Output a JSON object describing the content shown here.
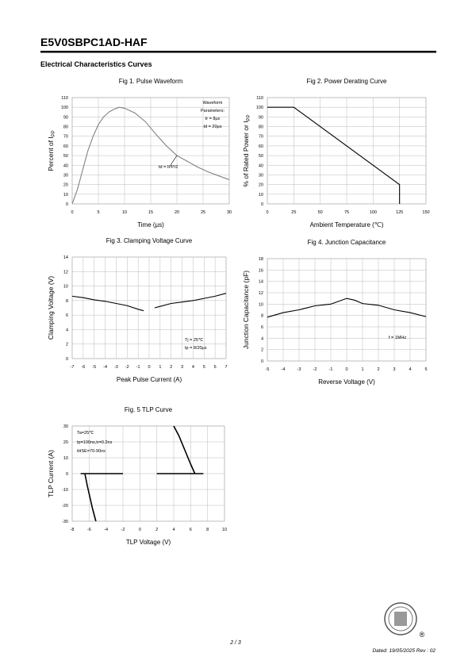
{
  "header": {
    "title": "E5V0SBPC1AD-HAF",
    "section": "Electrical Characteristics Curves"
  },
  "chart_data": [
    {
      "type": "line",
      "title": "Fig 1. Pulse Waveform",
      "xlabel": "Time (μs)",
      "ylabel": "Percent of I",
      "ylabel_sub": "PP",
      "xlim": [
        0,
        30
      ],
      "xticks": [
        0,
        5,
        10,
        15,
        20,
        25,
        30
      ],
      "ylim": [
        0,
        110
      ],
      "yticks": [
        0,
        10,
        20,
        30,
        40,
        50,
        60,
        70,
        80,
        90,
        100,
        110
      ],
      "grid": true,
      "series": [
        {
          "color": "#808080",
          "x": [
            0,
            1,
            2,
            3,
            4,
            5,
            6,
            7,
            8,
            9,
            10,
            12,
            14,
            16,
            18,
            20,
            22,
            24,
            26,
            28,
            30
          ],
          "values": [
            0,
            15,
            35,
            55,
            70,
            82,
            90,
            95,
            98,
            100,
            99,
            94,
            85,
            72,
            60,
            50,
            44,
            38,
            33,
            29,
            25
          ]
        }
      ],
      "annotations": [
        "Waveform",
        "Parameters:",
        "tr = 8μs",
        "td = 20μs",
        "td = IPP/2"
      ]
    },
    {
      "type": "line",
      "title": "Fig 2. Power Derating Curve",
      "xlabel": "Ambient Temperature (℃)",
      "ylabel": "% of Rated Power or I",
      "ylabel_sub": "PP",
      "xlim": [
        0,
        150
      ],
      "xticks": [
        0,
        25,
        50,
        75,
        100,
        125,
        150
      ],
      "ylim": [
        0,
        110
      ],
      "yticks": [
        0,
        10,
        20,
        30,
        40,
        50,
        60,
        70,
        80,
        90,
        100,
        110
      ],
      "grid": true,
      "series": [
        {
          "color": "#000000",
          "x": [
            0,
            25,
            125,
            125
          ],
          "values": [
            100,
            100,
            20,
            0
          ]
        }
      ],
      "annotations": []
    },
    {
      "type": "line",
      "title": "Fig 3. Clamping Voltage Curve",
      "xlabel": "Peak Pulse Current (A)",
      "ylabel": "Clamping Voltage (V)",
      "xlim": [
        -7,
        7
      ],
      "xticks": [
        -7,
        -6,
        -5,
        -4,
        -3,
        -2,
        -1,
        0,
        1,
        2,
        3,
        4,
        5,
        6,
        7
      ],
      "ylim": [
        0,
        14
      ],
      "yticks": [
        0,
        2,
        4,
        6,
        8,
        10,
        12,
        14
      ],
      "grid": true,
      "series": [
        {
          "color": "#000000",
          "x": [
            -7,
            -6,
            -5,
            -4,
            -3,
            -2,
            -1,
            -0.5,
            0,
            0.5,
            1,
            2,
            3,
            4,
            5,
            6,
            7
          ],
          "values": [
            8.6,
            8.4,
            8.1,
            7.9,
            7.6,
            7.3,
            6.8,
            6.6,
            null,
            7.0,
            7.2,
            7.6,
            7.8,
            8.0,
            8.3,
            8.6,
            9.0
          ]
        }
      ],
      "annotations": [
        "Tj = 25℃",
        "tp = 8/20μs"
      ]
    },
    {
      "type": "line",
      "title": "Fig 4. Junction Capacitance",
      "xlabel": "Reverse Voltage (V)",
      "ylabel": "Junction Capacitance (pF)",
      "xlim": [
        -5,
        5
      ],
      "xticks": [
        -5,
        -4,
        -3,
        -2,
        -1,
        0,
        1,
        2,
        3,
        4,
        5
      ],
      "ylim": [
        0,
        18
      ],
      "yticks": [
        0,
        2,
        4,
        6,
        8,
        10,
        12,
        14,
        16,
        18
      ],
      "grid": true,
      "series": [
        {
          "color": "#000000",
          "x": [
            -5,
            -4,
            -3,
            -2,
            -1,
            -0.5,
            0,
            0.5,
            1,
            2,
            3,
            4,
            5
          ],
          "values": [
            7.7,
            8.5,
            9,
            9.7,
            10,
            10.5,
            11,
            10.7,
            10.1,
            9.8,
            9,
            8.5,
            7.8
          ]
        }
      ],
      "annotations": [
        "f = 1MHz"
      ]
    },
    {
      "type": "line",
      "title": "Fig. 5 TLP Curve",
      "xlabel": "TLP Voltage (V)",
      "ylabel": "TLP Current (A)",
      "xlim": [
        -8,
        10
      ],
      "xticks": [
        -8,
        -6,
        -4,
        -2,
        0,
        2,
        4,
        6,
        8,
        10
      ],
      "ylim": [
        -30,
        30
      ],
      "yticks": [
        -30,
        -20,
        -10,
        0,
        10,
        20,
        30
      ],
      "grid": true,
      "series": [
        {
          "color": "#000000",
          "x": [
            -7,
            -2
          ],
          "values": [
            0,
            0
          ]
        },
        {
          "color": "#000000",
          "x": [
            -6.5,
            -6.2,
            -5.9,
            -5.6,
            -5.2
          ],
          "values": [
            0,
            -8,
            -15,
            -22,
            -30
          ]
        },
        {
          "color": "#000000",
          "x": [
            2,
            7.5
          ],
          "values": [
            0,
            0
          ]
        },
        {
          "color": "#000000",
          "x": [
            4,
            4.6,
            5.3,
            6,
            6.5
          ],
          "values": [
            30,
            24,
            15,
            6,
            0
          ]
        }
      ],
      "annotations": [
        "Ta=25℃",
        "tp=100ns,tr=0.2ns",
        "tHSE=70-90ns"
      ]
    }
  ],
  "footer": {
    "page": "2 / 3",
    "dated": "Dated: 19/05/2025  Rev : 02",
    "logo_mark": "®"
  }
}
